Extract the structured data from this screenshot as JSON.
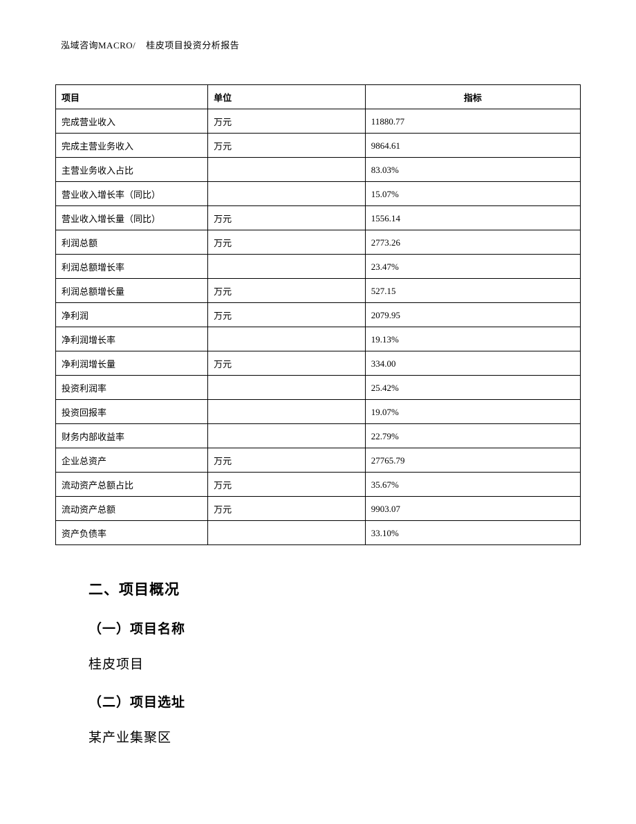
{
  "header": {
    "left": "泓域咨询MACRO/",
    "right": "桂皮项目投资分析报告"
  },
  "table": {
    "columns": [
      "项目",
      "单位",
      "指标"
    ],
    "col_widths_pct": [
      29,
      30,
      41
    ],
    "border_color": "#000000",
    "font_size_pt": 10,
    "rows": [
      {
        "item": "完成营业收入",
        "unit": "万元",
        "metric": "11880.77"
      },
      {
        "item": "完成主营业务收入",
        "unit": "万元",
        "metric": "9864.61"
      },
      {
        "item": "主营业务收入占比",
        "unit": "",
        "metric": "83.03%"
      },
      {
        "item": "营业收入增长率（同比）",
        "unit": "",
        "metric": "15.07%"
      },
      {
        "item": "营业收入增长量（同比）",
        "unit": "万元",
        "metric": "1556.14"
      },
      {
        "item": "利润总额",
        "unit": "万元",
        "metric": "2773.26"
      },
      {
        "item": "利润总额增长率",
        "unit": "",
        "metric": "23.47%"
      },
      {
        "item": "利润总额增长量",
        "unit": "万元",
        "metric": "527.15"
      },
      {
        "item": "净利润",
        "unit": "万元",
        "metric": "2079.95"
      },
      {
        "item": "净利润增长率",
        "unit": "",
        "metric": "19.13%"
      },
      {
        "item": "净利润增长量",
        "unit": "万元",
        "metric": "334.00"
      },
      {
        "item": "投资利润率",
        "unit": "",
        "metric": "25.42%"
      },
      {
        "item": "投资回报率",
        "unit": "",
        "metric": "19.07%"
      },
      {
        "item": "财务内部收益率",
        "unit": "",
        "metric": "22.79%"
      },
      {
        "item": "企业总资产",
        "unit": "万元",
        "metric": "27765.79"
      },
      {
        "item": "流动资产总额占比",
        "unit": "万元",
        "metric": "35.67%"
      },
      {
        "item": "流动资产总额",
        "unit": "万元",
        "metric": "9903.07"
      },
      {
        "item": "资产负债率",
        "unit": "",
        "metric": "33.10%"
      }
    ]
  },
  "sections": {
    "h1": "二、项目概况",
    "s1_title": "（一）项目名称",
    "s1_body": "桂皮项目",
    "s2_title": "（二）项目选址",
    "s2_body": "某产业集聚区"
  },
  "style": {
    "page_bg": "#ffffff",
    "text_color": "#000000",
    "body_font_size_pt": 14,
    "h1_font_size_pt": 16
  }
}
